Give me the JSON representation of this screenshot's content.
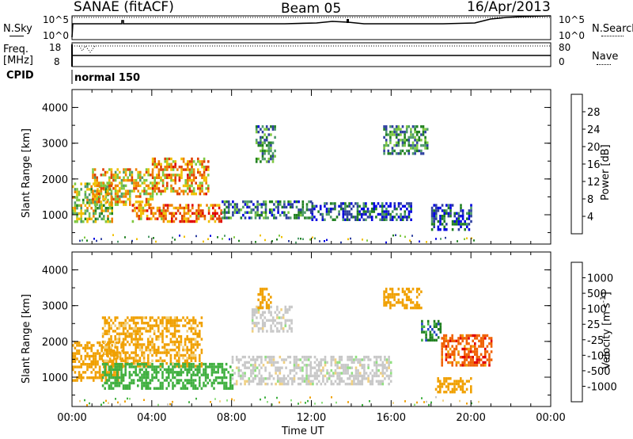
{
  "header": {
    "station": "SANAE (fitACF)",
    "beam": "Beam 05",
    "date": "16/Apr/2013"
  },
  "strips": {
    "nsky_label": "N.Sky",
    "nsearch_label": "N.Search",
    "noise_tick_top": "10^5",
    "noise_tick_bottom": "10^0",
    "noise_tick_top_right": "10^5",
    "noise_tick_bottom_right": "10^0",
    "freq_label": "Freq.",
    "freq_unit": "[MHz]",
    "freq_tick_top": "18",
    "freq_tick_bottom": "8",
    "nave_label": "Nave",
    "nave_tick_top": "80",
    "nave_tick_bottom": "0",
    "cpid_label": "CPID",
    "cpid_value": "normal 150"
  },
  "colors": {
    "power": [
      "#0000e0",
      "#2e3fa0",
      "#208020",
      "#4e9b6a",
      "#7ec840",
      "#f0c000",
      "#f08000",
      "#e04000",
      "#e00000"
    ],
    "velocity": [
      "#e00000",
      "#f06000",
      "#f0a000",
      "#f0d080",
      "#c8c8c8",
      "#90e080",
      "#40b040",
      "#208020",
      "#2040c0",
      "#0000c0"
    ],
    "ground_scatter": "#c8c8c8"
  },
  "chart_data": [
    {
      "type": "heatmap",
      "title": "",
      "xlabel": "",
      "ylabel": "Slant Range [km]",
      "x_ticks": [
        "00:00",
        "04:00",
        "08:00",
        "12:00",
        "16:00",
        "20:00",
        "00:00"
      ],
      "y_ticks": [
        1000,
        2000,
        3000,
        4000
      ],
      "xlim_hours": [
        0,
        24
      ],
      "ylim": [
        180,
        4500
      ],
      "colorbar": {
        "label": "Power [dB]",
        "ticks": [
          4,
          8,
          12,
          16,
          20,
          24,
          28
        ],
        "range": [
          0,
          32
        ]
      },
      "scatter_regions": [
        {
          "t_start": 0.0,
          "t_end": 2.0,
          "r_low": 800,
          "r_high": 1900,
          "value": 16
        },
        {
          "t_start": 1.0,
          "t_end": 4.0,
          "r_low": 1300,
          "r_high": 2300,
          "value": 20
        },
        {
          "t_start": 4.0,
          "t_end": 6.8,
          "r_low": 1600,
          "r_high": 2600,
          "value": 22
        },
        {
          "t_start": 3.0,
          "t_end": 7.5,
          "r_low": 800,
          "r_high": 1300,
          "value": 24
        },
        {
          "t_start": 7.5,
          "t_end": 12.0,
          "r_low": 900,
          "r_high": 1400,
          "value": 8
        },
        {
          "t_start": 12.0,
          "t_end": 17.0,
          "r_low": 850,
          "r_high": 1350,
          "value": 6
        },
        {
          "t_start": 9.2,
          "t_end": 10.2,
          "r_low": 2500,
          "r_high": 3500,
          "value": 10
        },
        {
          "t_start": 15.6,
          "t_end": 17.8,
          "r_low": 2700,
          "r_high": 3500,
          "value": 10
        },
        {
          "t_start": 18.0,
          "t_end": 20.0,
          "r_low": 600,
          "r_high": 1300,
          "value": 6
        }
      ]
    },
    {
      "type": "heatmap",
      "title": "",
      "xlabel": "Time UT",
      "ylabel": "Slant Range [km]",
      "x_ticks": [
        "00:00",
        "04:00",
        "08:00",
        "12:00",
        "16:00",
        "20:00",
        "00:00"
      ],
      "y_ticks": [
        1000,
        2000,
        3000,
        4000
      ],
      "xlim_hours": [
        0,
        24
      ],
      "ylim": [
        180,
        4500
      ],
      "colorbar": {
        "label": "Velocity [m s^-1]",
        "ticks": [
          1000,
          500,
          100,
          25,
          -25,
          -100,
          -500,
          -1000
        ]
      },
      "scatter_regions": [
        {
          "t_start": 0.0,
          "t_end": 2.5,
          "r_low": 900,
          "r_high": 2000,
          "value": -300
        },
        {
          "t_start": 1.5,
          "t_end": 6.5,
          "r_low": 1300,
          "r_high": 2700,
          "value": -150
        },
        {
          "t_start": 1.5,
          "t_end": 8.0,
          "r_low": 700,
          "r_high": 1400,
          "value": 200
        },
        {
          "t_start": 8.0,
          "t_end": 16.0,
          "r_low": 800,
          "r_high": 1600,
          "value": 0
        },
        {
          "t_start": 9.0,
          "t_end": 11.0,
          "r_low": 2300,
          "r_high": 3000,
          "value": 0
        },
        {
          "t_start": 9.3,
          "t_end": 10.0,
          "r_low": 2900,
          "r_high": 3500,
          "value": -200
        },
        {
          "t_start": 15.6,
          "t_end": 17.5,
          "r_low": 2900,
          "r_high": 3500,
          "value": -200
        },
        {
          "t_start": 17.5,
          "t_end": 18.5,
          "r_low": 2000,
          "r_high": 2600,
          "value": 800
        },
        {
          "t_start": 18.2,
          "t_end": 20.0,
          "r_low": 600,
          "r_high": 1000,
          "value": -300
        },
        {
          "t_start": 18.5,
          "t_end": 21.0,
          "r_low": 1300,
          "r_high": 2200,
          "value": -800
        }
      ]
    }
  ]
}
